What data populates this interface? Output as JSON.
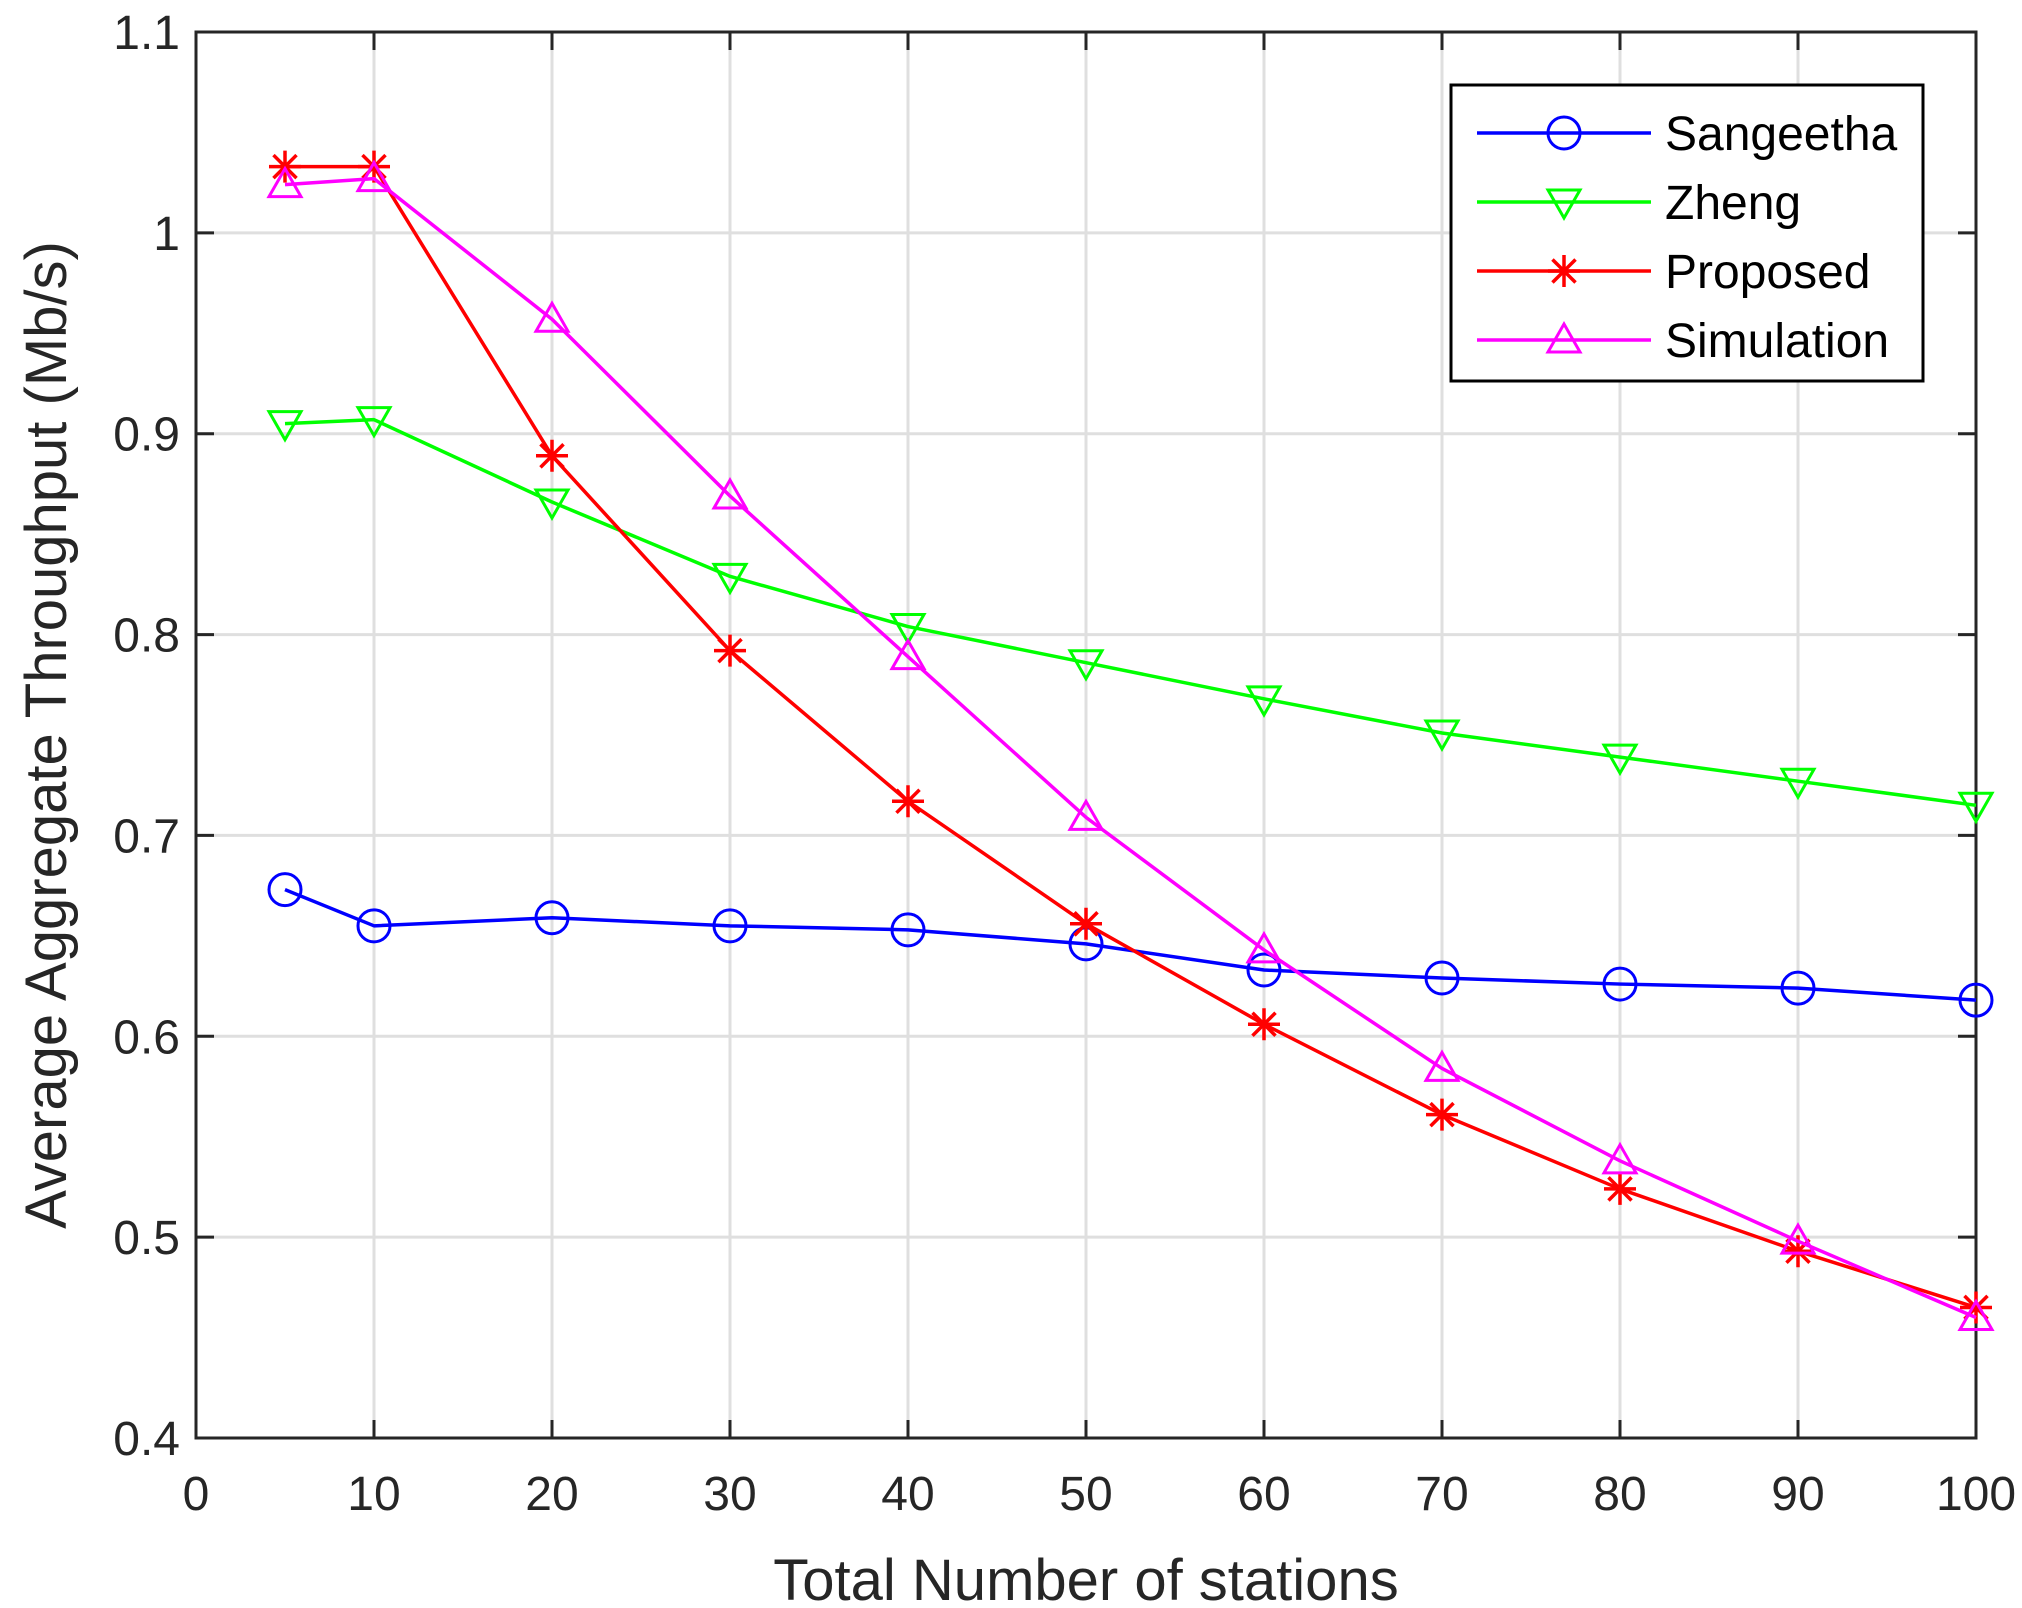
{
  "chart_data": {
    "type": "line",
    "xlabel": "Total Number of stations",
    "ylabel": "Average Aggregate Throughput (Mb/s)",
    "xlim": [
      0,
      100
    ],
    "ylim": [
      0.4,
      1.1
    ],
    "x_ticks": [
      "0",
      "10",
      "20",
      "30",
      "40",
      "50",
      "60",
      "70",
      "80",
      "90",
      "100"
    ],
    "y_ticks": [
      "0.4",
      "0.5",
      "0.6",
      "0.7",
      "0.8",
      "0.9",
      "1",
      "1.1"
    ],
    "grid": true,
    "legend_position": "top-right",
    "x": [
      5,
      10,
      20,
      30,
      40,
      50,
      60,
      70,
      80,
      90,
      100
    ],
    "series": [
      {
        "name": "Sangeetha",
        "color": "#0000ff",
        "marker": "circle",
        "values": [
          0.673,
          0.655,
          0.659,
          0.655,
          0.653,
          0.646,
          0.633,
          0.629,
          0.626,
          0.624,
          0.618
        ]
      },
      {
        "name": "Zheng",
        "color": "#00ff00",
        "marker": "triangle-down",
        "values": [
          0.905,
          0.907,
          0.866,
          0.829,
          0.804,
          0.786,
          0.768,
          0.751,
          0.739,
          0.727,
          0.715
        ]
      },
      {
        "name": "Proposed",
        "color": "#ff0000",
        "marker": "asterisk",
        "values": [
          1.033,
          1.033,
          0.889,
          0.792,
          0.717,
          0.656,
          0.606,
          0.561,
          0.524,
          0.493,
          0.465
        ]
      },
      {
        "name": "Simulation",
        "color": "#ff00ff",
        "marker": "triangle-up",
        "values": [
          1.024,
          1.027,
          0.957,
          0.869,
          0.789,
          0.709,
          0.643,
          0.584,
          0.538,
          0.498,
          0.46
        ]
      }
    ]
  }
}
